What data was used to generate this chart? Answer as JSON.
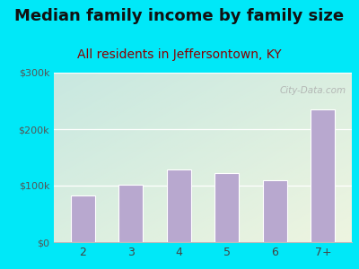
{
  "title": "Median family income by family size",
  "subtitle": "All residents in Jeffersontown, KY",
  "categories": [
    "2",
    "3",
    "4",
    "5",
    "6",
    "7+"
  ],
  "values": [
    82000,
    102000,
    128000,
    123000,
    110000,
    235000
  ],
  "bar_color": "#b8a8cf",
  "bar_edge_color": "#ffffff",
  "background_outer": "#00e8f8",
  "background_inner_topleft": "#c8e8e0",
  "background_inner_bottomright": "#eef5e0",
  "ylim": [
    0,
    300000
  ],
  "yticks": [
    0,
    100000,
    200000,
    300000
  ],
  "ytick_labels": [
    "$0",
    "$100k",
    "$200k",
    "$300k"
  ],
  "title_fontsize": 13,
  "subtitle_fontsize": 10,
  "watermark": "City-Data.com"
}
